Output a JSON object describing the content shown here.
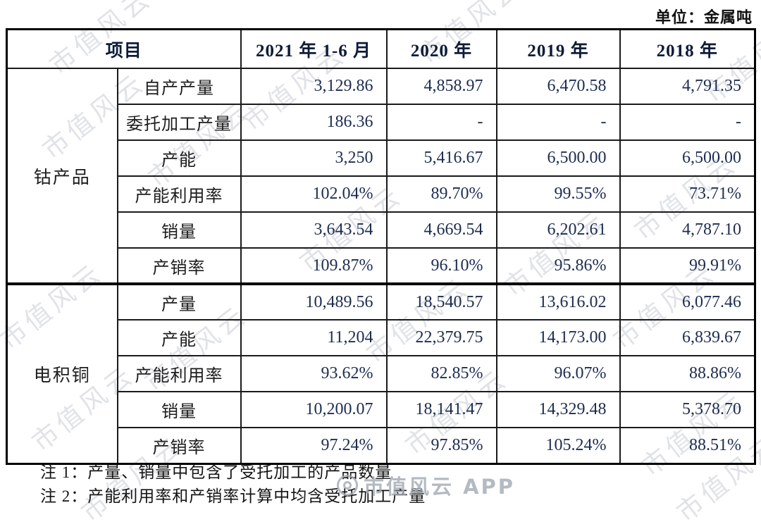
{
  "unit_label": "单位：金属吨",
  "watermark": {
    "text": "市值风云",
    "footer_text": "市值风云 APP"
  },
  "table": {
    "header": {
      "item": "项目",
      "periods": [
        "2021 年 1-6 月",
        "2020 年",
        "2019 年",
        "2018 年"
      ]
    },
    "groups": [
      {
        "name": "钴产品",
        "rows": [
          {
            "label": "自产产量",
            "values": [
              "3,129.86",
              "4,858.97",
              "6,470.58",
              "4,791.35"
            ]
          },
          {
            "label": "委托加工产量",
            "values": [
              "186.36",
              "-",
              "-",
              "-"
            ]
          },
          {
            "label": "产能",
            "values": [
              "3,250",
              "5,416.67",
              "6,500.00",
              "6,500.00"
            ]
          },
          {
            "label": "产能利用率",
            "values": [
              "102.04%",
              "89.70%",
              "99.55%",
              "73.71%"
            ]
          },
          {
            "label": "销量",
            "values": [
              "3,643.54",
              "4,669.54",
              "6,202.61",
              "4,787.10"
            ]
          },
          {
            "label": "产销率",
            "values": [
              "109.87%",
              "96.10%",
              "95.86%",
              "99.91%"
            ]
          }
        ]
      },
      {
        "name": "电积铜",
        "rows": [
          {
            "label": "产量",
            "values": [
              "10,489.56",
              "18,540.57",
              "13,616.02",
              "6,077.46"
            ]
          },
          {
            "label": "产能",
            "values": [
              "11,204",
              "22,379.75",
              "14,173.00",
              "6,839.67"
            ]
          },
          {
            "label": "产能利用率",
            "values": [
              "93.62%",
              "82.85%",
              "96.07%",
              "88.86%"
            ]
          },
          {
            "label": "销量",
            "values": [
              "10,200.07",
              "18,141.47",
              "14,329.48",
              "5,378.70"
            ]
          },
          {
            "label": "产销率",
            "values": [
              "97.24%",
              "97.85%",
              "105.24%",
              "88.51%"
            ]
          }
        ]
      }
    ]
  },
  "notes": [
    "注 1：产量、销量中包含了受托加工的产品数量",
    "注 2：产能利用率和产销率计算中均含受托加工产量"
  ]
}
